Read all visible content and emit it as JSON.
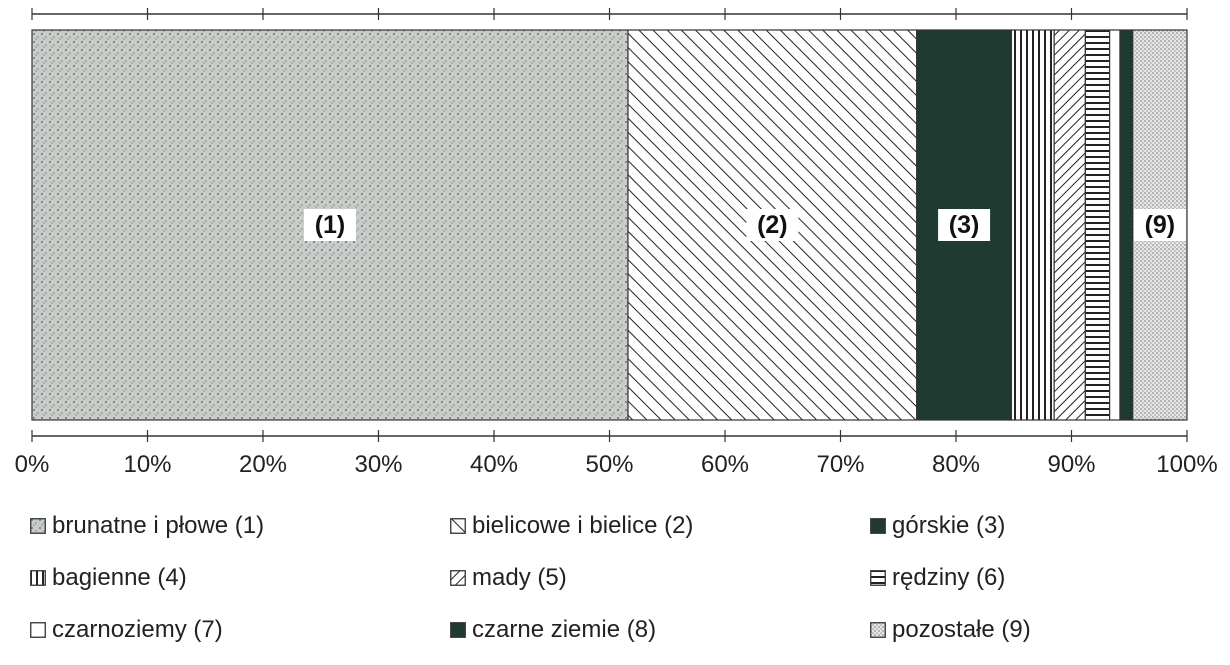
{
  "chart_data": {
    "type": "bar",
    "orientation": "horizontal-stacked-100",
    "xlim": [
      0,
      100
    ],
    "x_ticks": [
      "0%",
      "10%",
      "20%",
      "30%",
      "40%",
      "50%",
      "60%",
      "70%",
      "80%",
      "90%",
      "100%"
    ],
    "series": [
      {
        "name": "brunatne i płowe (1)",
        "value": 51.6,
        "label": "(1)",
        "pattern": "stipple"
      },
      {
        "name": "bielicowe i bielice (2)",
        "value": 25.0,
        "label": "(2)",
        "pattern": "diag-up"
      },
      {
        "name": "górskie (3)",
        "value": 8.2,
        "label": "(3)",
        "pattern": "solid-dark"
      },
      {
        "name": "bagienne (4)",
        "value": 3.7,
        "label": "",
        "pattern": "vertical"
      },
      {
        "name": "mady (5)",
        "value": 2.7,
        "label": "",
        "pattern": "diag-down"
      },
      {
        "name": "rędziny (6)",
        "value": 2.1,
        "label": "",
        "pattern": "horizontal"
      },
      {
        "name": "czarnoziemy (7)",
        "value": 0.9,
        "label": "",
        "pattern": "white"
      },
      {
        "name": "czarne ziemie (8)",
        "value": 1.1,
        "label": "",
        "pattern": "solid-dark"
      },
      {
        "name": "pozostałe (9)",
        "value": 4.7,
        "label": "(9)",
        "pattern": "dots"
      }
    ],
    "legend": {
      "placement": "bottom",
      "columns": 3,
      "items": [
        "brunatne i płowe (1)",
        "bielicowe i bielice (2)",
        "górskie (3)",
        "bagienne (4)",
        "mady (5)",
        "rędziny (6)",
        "czarnoziemy (7)",
        "czarne ziemie (8)",
        "pozostałe (9)"
      ]
    },
    "colors": {
      "dark": "#1f3a30",
      "stipple_bg": "#c8ccc8",
      "line": "#222222"
    }
  }
}
